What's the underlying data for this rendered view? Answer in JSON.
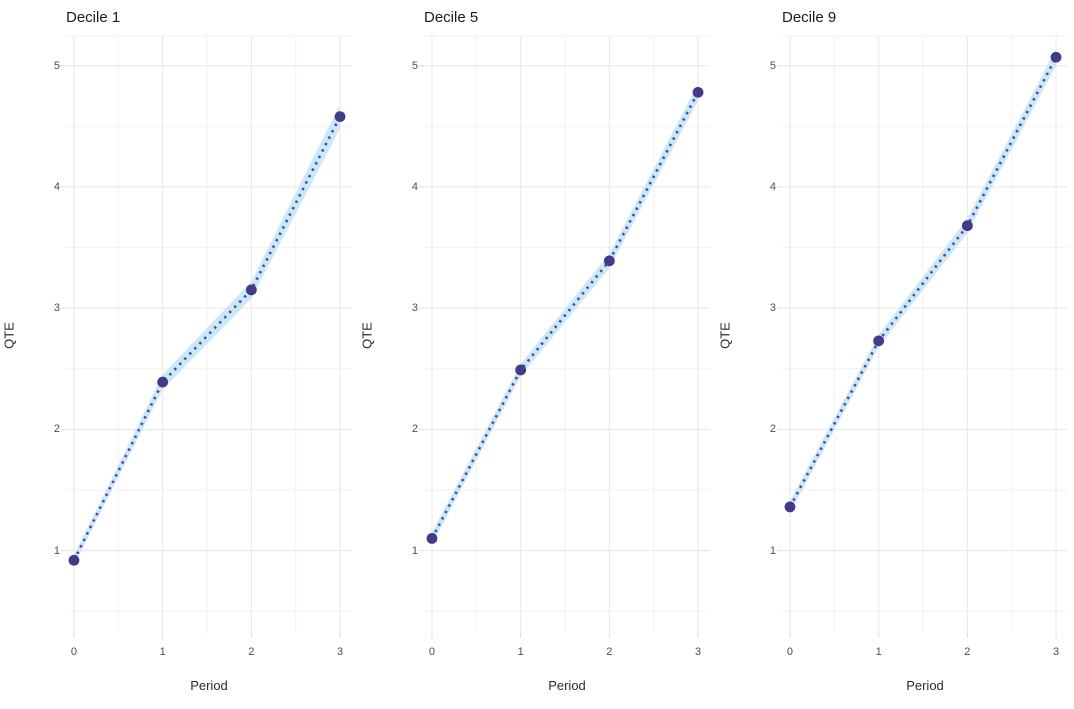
{
  "figure_title": "",
  "style": {
    "background": "#ffffff",
    "grid_major_color": "#e7e7e7",
    "grid_minor_color": "#f2f2f2",
    "top_border_color": "#f0f0f0",
    "axis_tick_color": "#dbdbdb",
    "ribbon_color": "#c9e9f8",
    "line_color": "#4c4d9d",
    "point_color": "#433a88",
    "tick_label_color": "#4d4d4d",
    "axis_title_color": "#2b2b2b",
    "panel_title_color": "#1b1b1b"
  },
  "chart_data": [
    {
      "type": "line",
      "title": "Decile 1",
      "xlabel": "Period",
      "ylabel": "QTE",
      "x": [
        0,
        1,
        2,
        3
      ],
      "series": [
        {
          "name": "QTE",
          "values": [
            0.92,
            2.39,
            3.15,
            4.58
          ],
          "ci_lower": [
            0.88,
            2.33,
            3.08,
            4.48
          ],
          "ci_upper": [
            0.96,
            2.45,
            3.22,
            4.68
          ]
        }
      ],
      "xticks": [
        "0",
        "1",
        "2",
        "3"
      ],
      "yticks": [
        "1",
        "2",
        "3",
        "4",
        "5"
      ],
      "xlim": [
        -0.09,
        3.135
      ],
      "ylim": [
        0.32,
        5.245
      ],
      "grid": true,
      "legend": "none",
      "line_style": "dotted",
      "marker": "circle"
    },
    {
      "type": "line",
      "title": "Decile 5",
      "xlabel": "Period",
      "ylabel": "QTE",
      "x": [
        0,
        1,
        2,
        3
      ],
      "series": [
        {
          "name": "QTE",
          "values": [
            1.1,
            2.49,
            3.39,
            4.78
          ],
          "ci_lower": [
            1.05,
            2.44,
            3.33,
            4.71
          ],
          "ci_upper": [
            1.15,
            2.54,
            3.45,
            4.85
          ]
        }
      ],
      "xticks": [
        "0",
        "1",
        "2",
        "3"
      ],
      "yticks": [
        "1",
        "2",
        "3",
        "4",
        "5"
      ],
      "xlim": [
        -0.09,
        3.135
      ],
      "ylim": [
        0.32,
        5.245
      ],
      "grid": true,
      "legend": "none",
      "line_style": "dotted",
      "marker": "circle"
    },
    {
      "type": "line",
      "title": "Decile 9",
      "xlabel": "Period",
      "ylabel": "QTE",
      "x": [
        0,
        1,
        2,
        3
      ],
      "series": [
        {
          "name": "QTE",
          "values": [
            1.36,
            2.73,
            3.68,
            5.07
          ],
          "ci_lower": [
            1.31,
            2.68,
            3.62,
            5.0
          ],
          "ci_upper": [
            1.41,
            2.78,
            3.74,
            5.14
          ]
        }
      ],
      "xticks": [
        "0",
        "1",
        "2",
        "3"
      ],
      "yticks": [
        "1",
        "2",
        "3",
        "4",
        "5"
      ],
      "xlim": [
        -0.09,
        3.135
      ],
      "ylim": [
        0.32,
        5.245
      ],
      "grid": true,
      "legend": "none",
      "line_style": "dotted",
      "marker": "circle"
    }
  ]
}
